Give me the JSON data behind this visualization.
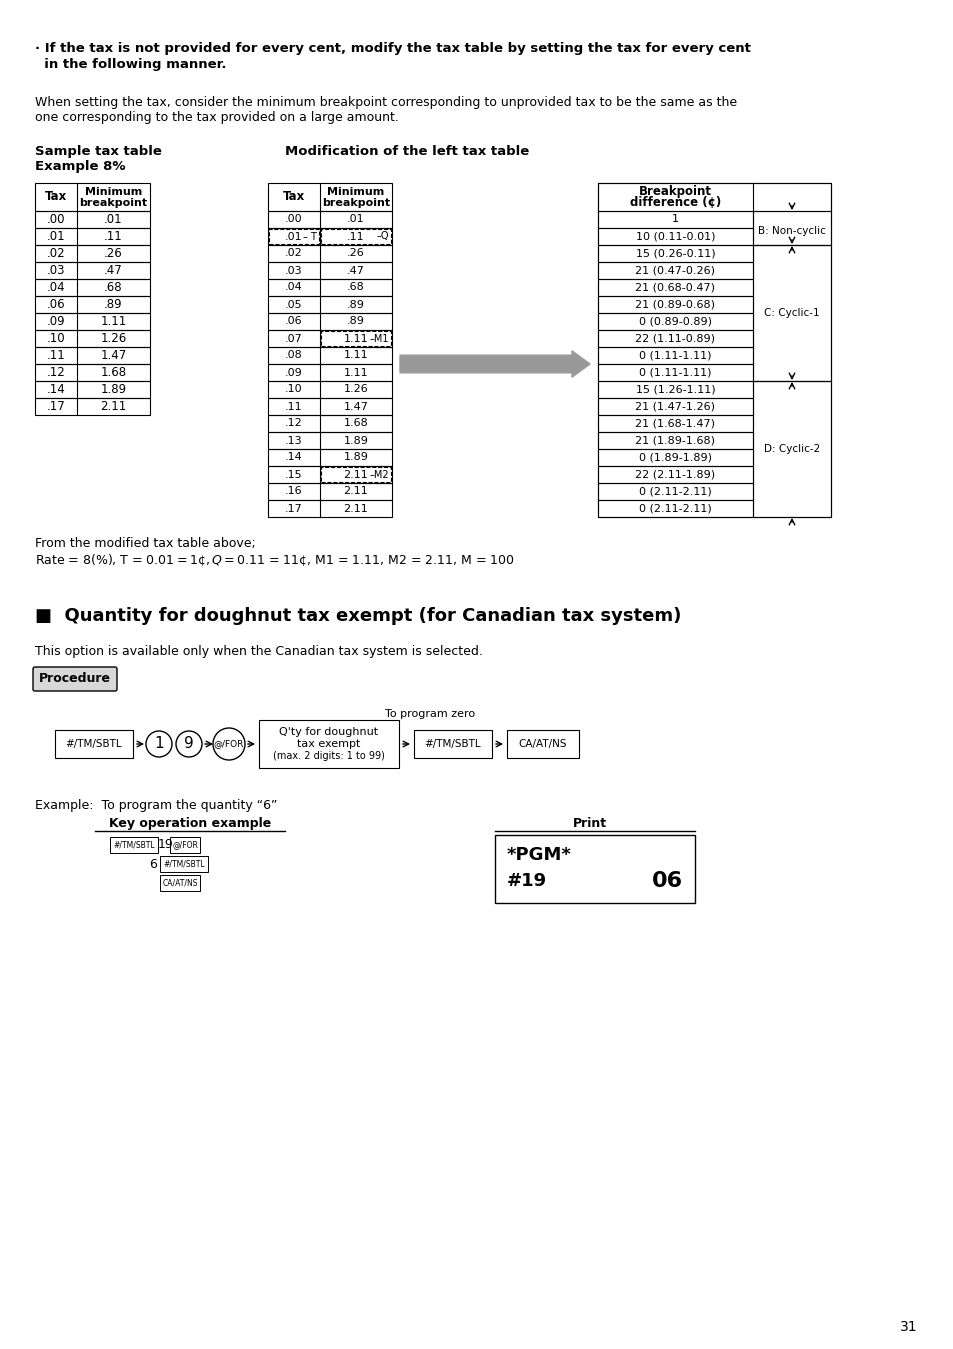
{
  "bg_color": "#ffffff",
  "page_number": "31",
  "bold_header_line1": "· If the tax is not provided for every cent, modify the tax table by setting the tax for every cent",
  "bold_header_line2": "  in the following manner.",
  "para1_line1": "When setting the tax, consider the minimum breakpoint corresponding to unprovided tax to be the same as the",
  "para1_line2": "one corresponding to the tax provided on a large amount.",
  "sample_label_line1": "Sample tax table",
  "sample_label_line2": "Example 8%",
  "mod_label": "Modification of the left tax table",
  "left_table_data": [
    [
      ".00",
      ".01"
    ],
    [
      ".01",
      ".11"
    ],
    [
      ".02",
      ".26"
    ],
    [
      ".03",
      ".47"
    ],
    [
      ".04",
      ".68"
    ],
    [
      ".06",
      ".89"
    ],
    [
      ".09",
      "1.11"
    ],
    [
      ".10",
      "1.26"
    ],
    [
      ".11",
      "1.47"
    ],
    [
      ".12",
      "1.68"
    ],
    [
      ".14",
      "1.89"
    ],
    [
      ".17",
      "2.11"
    ]
  ],
  "mid_table_data": [
    [
      ".00",
      ".01",
      false,
      false
    ],
    [
      ".01",
      ".11",
      true,
      true
    ],
    [
      ".02",
      ".26",
      false,
      false
    ],
    [
      ".03",
      ".47",
      false,
      false
    ],
    [
      ".04",
      ".68",
      false,
      false
    ],
    [
      ".05",
      ".89",
      false,
      false
    ],
    [
      ".06",
      ".89",
      false,
      false
    ],
    [
      ".07",
      "1.11",
      false,
      true
    ],
    [
      ".08",
      "1.11",
      false,
      false
    ],
    [
      ".09",
      "1.11",
      false,
      false
    ],
    [
      ".10",
      "1.26",
      false,
      false
    ],
    [
      ".11",
      "1.47",
      false,
      false
    ],
    [
      ".12",
      "1.68",
      false,
      false
    ],
    [
      ".13",
      "1.89",
      false,
      false
    ],
    [
      ".14",
      "1.89",
      false,
      false
    ],
    [
      ".15",
      "2.11",
      false,
      true
    ],
    [
      ".16",
      "2.11",
      false,
      false
    ],
    [
      ".17",
      "2.11",
      false,
      false
    ]
  ],
  "mid_t_label": "T",
  "mid_q_label": "Q",
  "mid_m1_label": "M1",
  "mid_m2_label": "M2",
  "right_table_data": [
    "1",
    "10 (0.11-0.01)",
    "15 (0.26-0.11)",
    "21 (0.47-0.26)",
    "21 (0.68-0.47)",
    "21 (0.89-0.68)",
    "0 (0.89-0.89)",
    "22 (1.11-0.89)",
    "0 (1.11-1.11)",
    "0 (1.11-1.11)",
    "15 (1.26-1.11)",
    "21 (1.47-1.26)",
    "21 (1.68-1.47)",
    "21 (1.89-1.68)",
    "0 (1.89-1.89)",
    "22 (2.11-1.89)",
    "0 (2.11-2.11)",
    "0 (2.11-2.11)"
  ],
  "b_label": "B: Non-cyclic",
  "b_rows": [
    0,
    1
  ],
  "c_label": "C: Cyclic-1",
  "c_rows": [
    2,
    9
  ],
  "d_label": "D: Cyclic-2",
  "d_rows": [
    10,
    17
  ],
  "from_text": "From the modified tax table above;",
  "rate_text": "Rate = 8(%), T = $0.01 = 1¢, Q = $0.11 = 11¢, M1 = 1.11, M2 = 2.11, M = 100",
  "section_title": "■  Quantity for doughnut tax exempt (for Canadian tax system)",
  "option_text": "This option is available only when the Canadian tax system is selected.",
  "procedure_label": "Procedure",
  "flow_label_top": "To program zero",
  "example_text": "Example:  To program the quantity “6”",
  "key_op_label": "Key operation example",
  "print_label": "Print"
}
